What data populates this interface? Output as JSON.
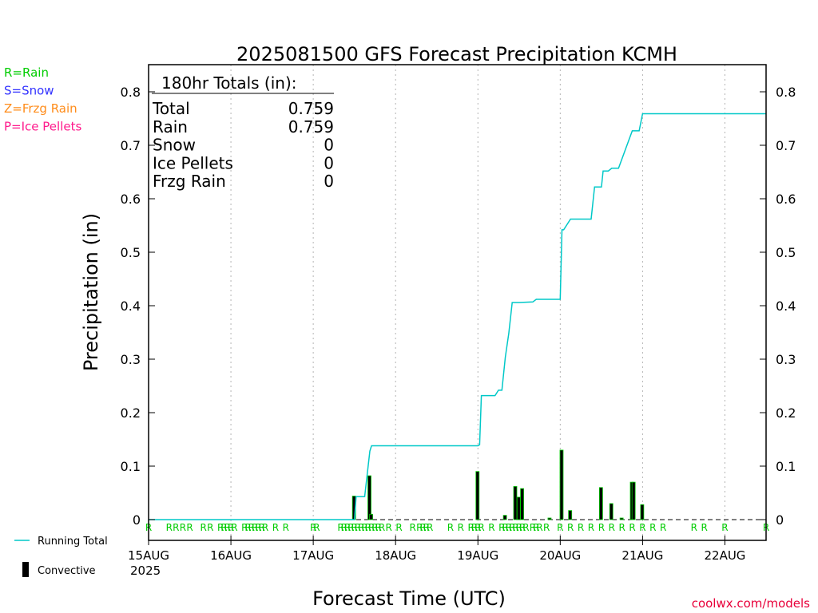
{
  "chart_data": {
    "type": "line",
    "title": "2025081500 GFS Forecast Precipitation KCMH",
    "xlabel": "Forecast Time (UTC)",
    "ylabel": "Precipitation (in)",
    "ylim": [
      0,
      0.84
    ],
    "xlim_hours": [
      0,
      180
    ],
    "yticks": [
      "0",
      "0.1",
      "0.2",
      "0.3",
      "0.4",
      "0.5",
      "0.6",
      "0.7",
      "0.8"
    ],
    "date_ticks": [
      {
        "hour": 0,
        "label": "15AUG"
      },
      {
        "hour": 24,
        "label": "16AUG"
      },
      {
        "hour": 48,
        "label": "17AUG"
      },
      {
        "hour": 72,
        "label": "18AUG"
      },
      {
        "hour": 96,
        "label": "19AUG"
      },
      {
        "hour": 120,
        "label": "20AUG"
      },
      {
        "hour": 144,
        "label": "21AUG"
      },
      {
        "hour": 168,
        "label": "22AUG"
      }
    ],
    "year_label": "2025",
    "grid": true,
    "legend_left": [
      {
        "text": "R=Rain",
        "color": "#00cc00"
      },
      {
        "text": "S=Snow",
        "color": "#3333ff"
      },
      {
        "text": "Z=Frzg Rain",
        "color": "#ff8c1a"
      },
      {
        "text": "P=Ice Pellets",
        "color": "#ff1a8c"
      }
    ],
    "legend_bottom": {
      "running_total": "Running Total",
      "convective": "Convective"
    },
    "totals_box": {
      "header": "180hr Totals (in):",
      "rows": [
        {
          "label": "Total",
          "value": "0.759"
        },
        {
          "label": "Rain",
          "value": "0.759"
        },
        {
          "label": "Snow",
          "value": "0"
        },
        {
          "label": "Ice Pellets",
          "value": "0"
        },
        {
          "label": "Frzg Rain",
          "value": "0"
        }
      ]
    },
    "watermark": "coolwx.com/models",
    "colors": {
      "running_total": "#00c8c8",
      "rain_marker": "#00cc00",
      "bar": "#000000",
      "bar_outline": "#00cc00"
    },
    "series": [
      {
        "name": "Running Total",
        "x": [
          0,
          60,
          60.5,
          63,
          64.5,
          65,
          96,
          96.5,
          97,
          101,
          102,
          103,
          104,
          105,
          106,
          108,
          112,
          113,
          114,
          116,
          117,
          120,
          120.5,
          121,
          123,
          124,
          129,
          130,
          132,
          132.5,
          134,
          135,
          136,
          137,
          141,
          141.5,
          143,
          144,
          180
        ],
        "y": [
          0,
          0,
          0.043,
          0.043,
          0.128,
          0.138,
          0.138,
          0.14,
          0.232,
          0.232,
          0.242,
          0.242,
          0.304,
          0.348,
          0.406,
          0.406,
          0.407,
          0.412,
          0.412,
          0.412,
          0.412,
          0.412,
          0.542,
          0.542,
          0.562,
          0.562,
          0.562,
          0.622,
          0.622,
          0.652,
          0.652,
          0.657,
          0.657,
          0.657,
          0.727,
          0.727,
          0.727,
          0.759,
          0.759
        ]
      },
      {
        "name": "Convective",
        "type": "bar",
        "x": [
          60,
          64.5,
          65,
          96,
          104,
          107,
          108,
          109,
          117,
          120.5,
          123,
          132,
          135,
          138,
          141,
          141.5,
          144
        ],
        "values": [
          0.044,
          0.082,
          0.01,
          0.09,
          0.008,
          0.062,
          0.042,
          0.058,
          0.003,
          0.13,
          0.017,
          0.06,
          0.03,
          0.003,
          0.07,
          0.07,
          0.028
        ]
      }
    ],
    "rain_markers": {
      "label": "R",
      "hours": [
        0,
        6,
        8,
        10,
        12,
        16,
        18,
        21,
        22,
        23,
        24,
        25,
        28,
        29,
        30,
        31,
        32,
        33,
        34,
        37,
        40,
        48,
        49,
        56,
        57,
        58,
        59,
        60,
        61,
        62,
        63,
        64,
        65,
        66,
        67,
        68,
        70,
        73,
        77,
        79,
        80,
        81,
        82,
        88,
        91,
        94,
        95,
        96,
        97,
        100,
        103,
        104,
        105,
        106,
        107,
        108,
        109,
        110,
        112,
        113,
        114,
        116,
        120,
        123,
        126,
        129,
        132,
        135,
        138,
        141,
        144,
        147,
        150,
        159,
        162,
        168,
        180
      ]
    }
  }
}
